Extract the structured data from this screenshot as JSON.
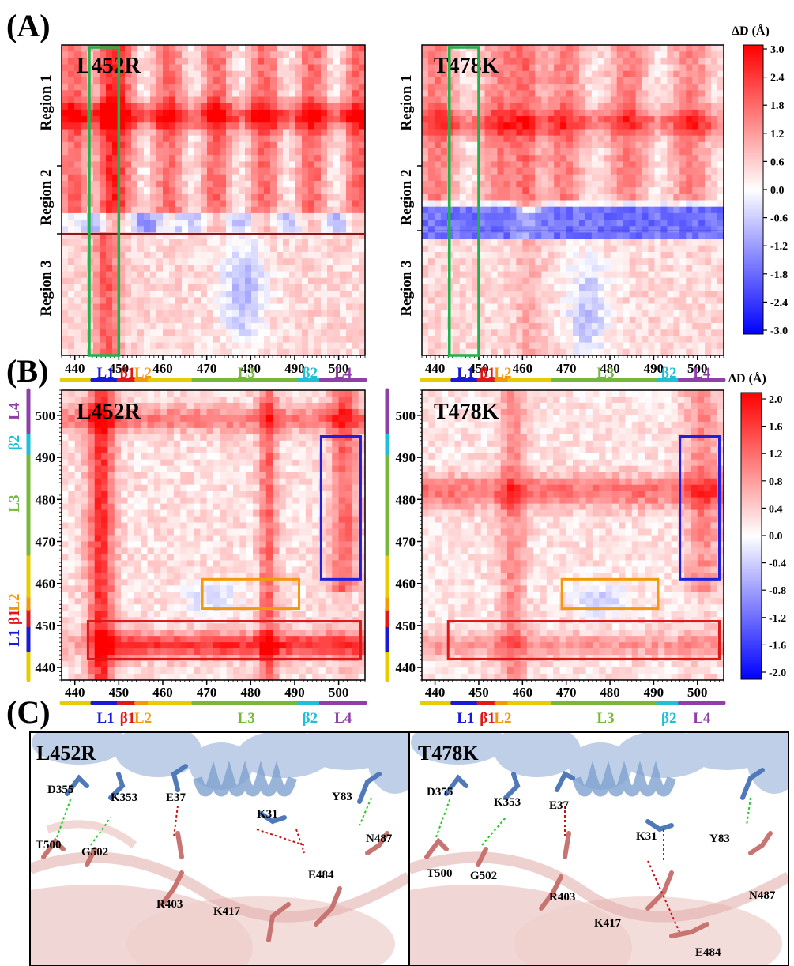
{
  "panel_labels": {
    "a": "(A)",
    "b": "(B)",
    "c": "(C)"
  },
  "mutants": [
    "L452R",
    "T478K"
  ],
  "colorbar_a": {
    "title": "ΔD (Å)",
    "min": -3.0,
    "max": 3.0,
    "ticks": [
      "3.0",
      "2.4",
      "1.8",
      "1.2",
      "0.6",
      "0.0",
      "-0.6",
      "-1.2",
      "-1.8",
      "-2.4",
      "-3.0"
    ]
  },
  "colorbar_b": {
    "title": "ΔD (Å)",
    "min": -2.0,
    "max": 2.0,
    "ticks": [
      "2.0",
      "1.6",
      "1.2",
      "0.8",
      "0.4",
      "0.0",
      "-0.4",
      "-0.8",
      "-1.2",
      "-1.6",
      "-2.0"
    ]
  },
  "x_ticks": [
    "440",
    "450",
    "460",
    "470",
    "480",
    "490",
    "500"
  ],
  "y_ticks_b": [
    "500",
    "490",
    "480",
    "470",
    "460",
    "450",
    "440"
  ],
  "regions_a": [
    "Region 1",
    "Region 2",
    "Region 3"
  ],
  "residue_range": [
    437,
    506
  ],
  "segments": [
    {
      "name": "",
      "start": 437,
      "end": 444,
      "color": "#e6cc00"
    },
    {
      "name": "L1",
      "start": 444,
      "end": 450,
      "color": "#1a1ad6"
    },
    {
      "name": "β1",
      "start": 450,
      "end": 454,
      "color": "#e01818"
    },
    {
      "name": "L2",
      "start": 454,
      "end": 457,
      "color": "#f39a0c"
    },
    {
      "name": "",
      "start": 457,
      "end": 467,
      "color": "#e6cc00"
    },
    {
      "name": "L3",
      "start": 467,
      "end": 491,
      "color": "#77b83a"
    },
    {
      "name": "β2",
      "start": 491,
      "end": 496,
      "color": "#1fbfd6"
    },
    {
      "name": "L4",
      "start": 496,
      "end": 506,
      "color": "#8e3fa8"
    }
  ],
  "highlight_boxes": {
    "a_green": {
      "x": [
        444,
        450
      ]
    },
    "b_blue": {
      "x": [
        496,
        505
      ],
      "y": [
        461,
        495
      ]
    },
    "b_orange": {
      "x": [
        469,
        491
      ],
      "y": [
        454,
        461
      ]
    },
    "b_red": {
      "x": [
        443,
        505
      ],
      "y": [
        442,
        451
      ]
    }
  },
  "panel_c": {
    "L452R": {
      "title": "L452R",
      "labels": [
        "D355",
        "K353",
        "E37",
        "Y83",
        "K31",
        "N487",
        "T500",
        "G502",
        "R403",
        "K417",
        "E484"
      ]
    },
    "T478K": {
      "title": "T478K",
      "labels": [
        "D355",
        "K353",
        "E37",
        "Y83",
        "K31",
        "T500",
        "G502",
        "R403",
        "N487",
        "K417",
        "E484"
      ]
    }
  },
  "colors": {
    "positive": "#ff0000",
    "negative": "#0000ff",
    "hbond": "#22cc22",
    "saltbridge": "#cc1111",
    "receptor": "#5b84bd",
    "rbd": "#d8908a",
    "box_green": "#1db34a"
  }
}
